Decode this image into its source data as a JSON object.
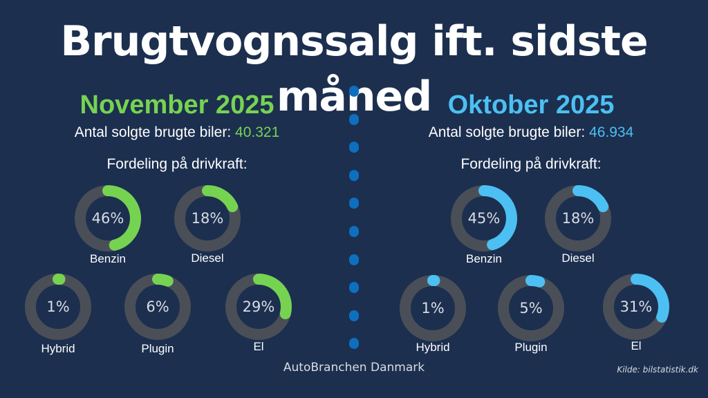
{
  "title": "Brugtvognssalg ift. sidste måned",
  "footer": "AutoBranchen Danmark",
  "source": "Kilde: bilstatistik.dk",
  "track_color": "#4a4f57",
  "divider_color": "#0e6fc0",
  "chart_data": [
    {
      "type": "pie",
      "period": "November 2025",
      "accent": "#76d352",
      "count_label": "Antal solgte brugte biler:",
      "count_value": "40.321",
      "subhead": "Fordeling på drivkraft:",
      "categories": [
        "Benzin",
        "Diesel",
        "Hybrid",
        "Plugin",
        "El"
      ],
      "values": [
        46,
        18,
        1,
        6,
        29
      ],
      "value_labels": [
        "46%",
        "18%",
        "1%",
        "6%",
        "29%"
      ]
    },
    {
      "type": "pie",
      "period": "Oktober 2025",
      "accent": "#4cc0f2",
      "count_label": "Antal solgte brugte biler:",
      "count_value": "46.934",
      "subhead": "Fordeling på drivkraft:",
      "categories": [
        "Benzin",
        "Diesel",
        "Hybrid",
        "Plugin",
        "El"
      ],
      "values": [
        45,
        18,
        1,
        5,
        31
      ],
      "value_labels": [
        "45%",
        "18%",
        "1%",
        "5%",
        "31%"
      ]
    }
  ]
}
